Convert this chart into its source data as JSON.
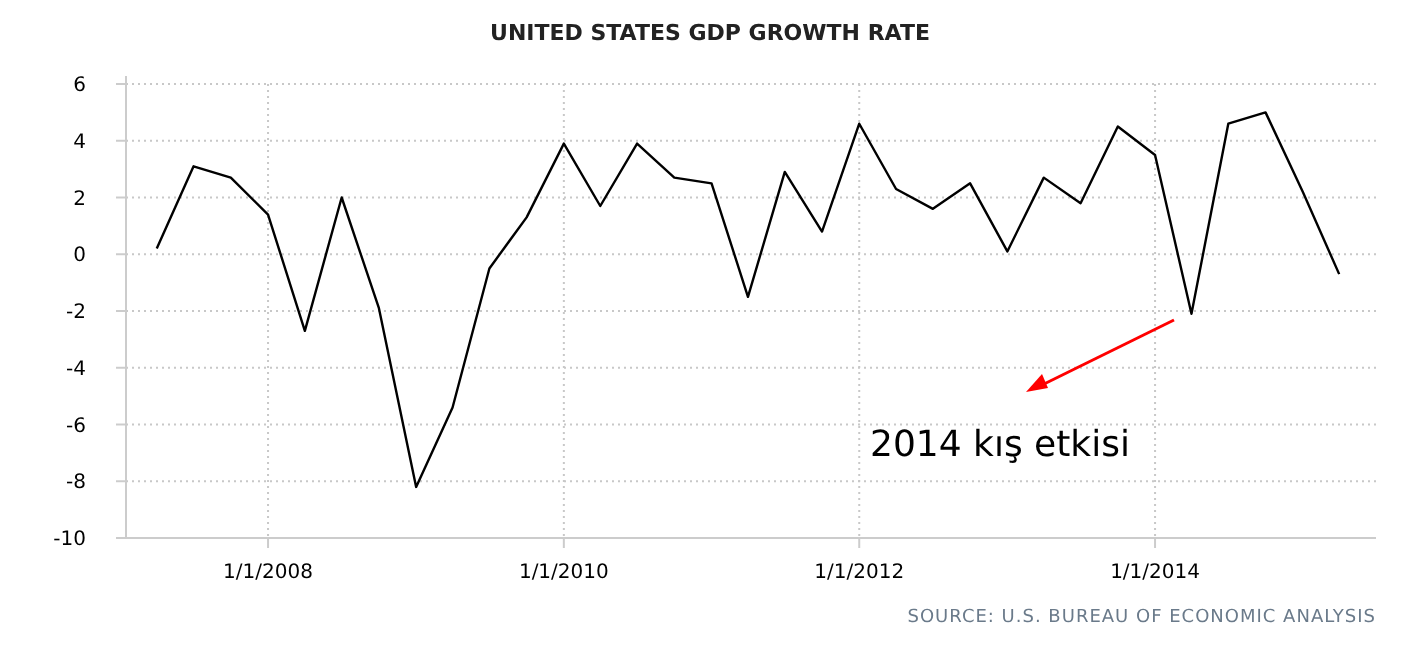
{
  "chart_data": {
    "type": "line",
    "title": "UNITED STATES GDP GROWTH RATE",
    "x": [
      "2007-04-01",
      "2007-07-01",
      "2007-10-01",
      "2008-01-01",
      "2008-04-01",
      "2008-07-01",
      "2008-10-01",
      "2009-01-01",
      "2009-04-01",
      "2009-07-01",
      "2009-10-01",
      "2010-01-01",
      "2010-04-01",
      "2010-07-01",
      "2010-10-01",
      "2011-01-01",
      "2011-04-01",
      "2011-07-01",
      "2011-10-01",
      "2012-01-01",
      "2012-04-01",
      "2012-07-01",
      "2012-10-01",
      "2013-01-01",
      "2013-04-01",
      "2013-07-01",
      "2013-10-01",
      "2014-01-01",
      "2014-04-01",
      "2014-07-01",
      "2014-10-01",
      "2015-01-01",
      "2015-04-01"
    ],
    "series": [
      {
        "color": "#000000",
        "values": [
          0.2,
          3.1,
          2.7,
          1.4,
          -2.7,
          2.0,
          -1.9,
          -8.2,
          -5.4,
          -0.5,
          1.3,
          3.9,
          1.7,
          3.9,
          2.7,
          2.5,
          -1.5,
          2.9,
          0.8,
          4.6,
          2.3,
          1.6,
          2.5,
          0.1,
          2.7,
          1.8,
          4.5,
          3.5,
          -2.1,
          4.6,
          5.0,
          2.2,
          -0.7
        ]
      }
    ],
    "xlim": [
      "2007-01-15",
      "2015-07-01"
    ],
    "xticks": [
      {
        "value": "2008-01-01",
        "label": "1/1/2008"
      },
      {
        "value": "2010-01-01",
        "label": "1/1/2010"
      },
      {
        "value": "2012-01-01",
        "label": "1/1/2012"
      },
      {
        "value": "2014-01-01",
        "label": "1/1/2014"
      }
    ],
    "ylim": [
      -10,
      6
    ],
    "yticks": [
      -10,
      -8,
      -6,
      -4,
      -2,
      0,
      2,
      4,
      6
    ],
    "grid": true,
    "marker": "none",
    "line_style": "solid",
    "annotations": [
      "2014 kış etkisi",
      "SOURCE: U.S. BUREAU OF ECONOMIC ANALYSIS"
    ]
  }
}
